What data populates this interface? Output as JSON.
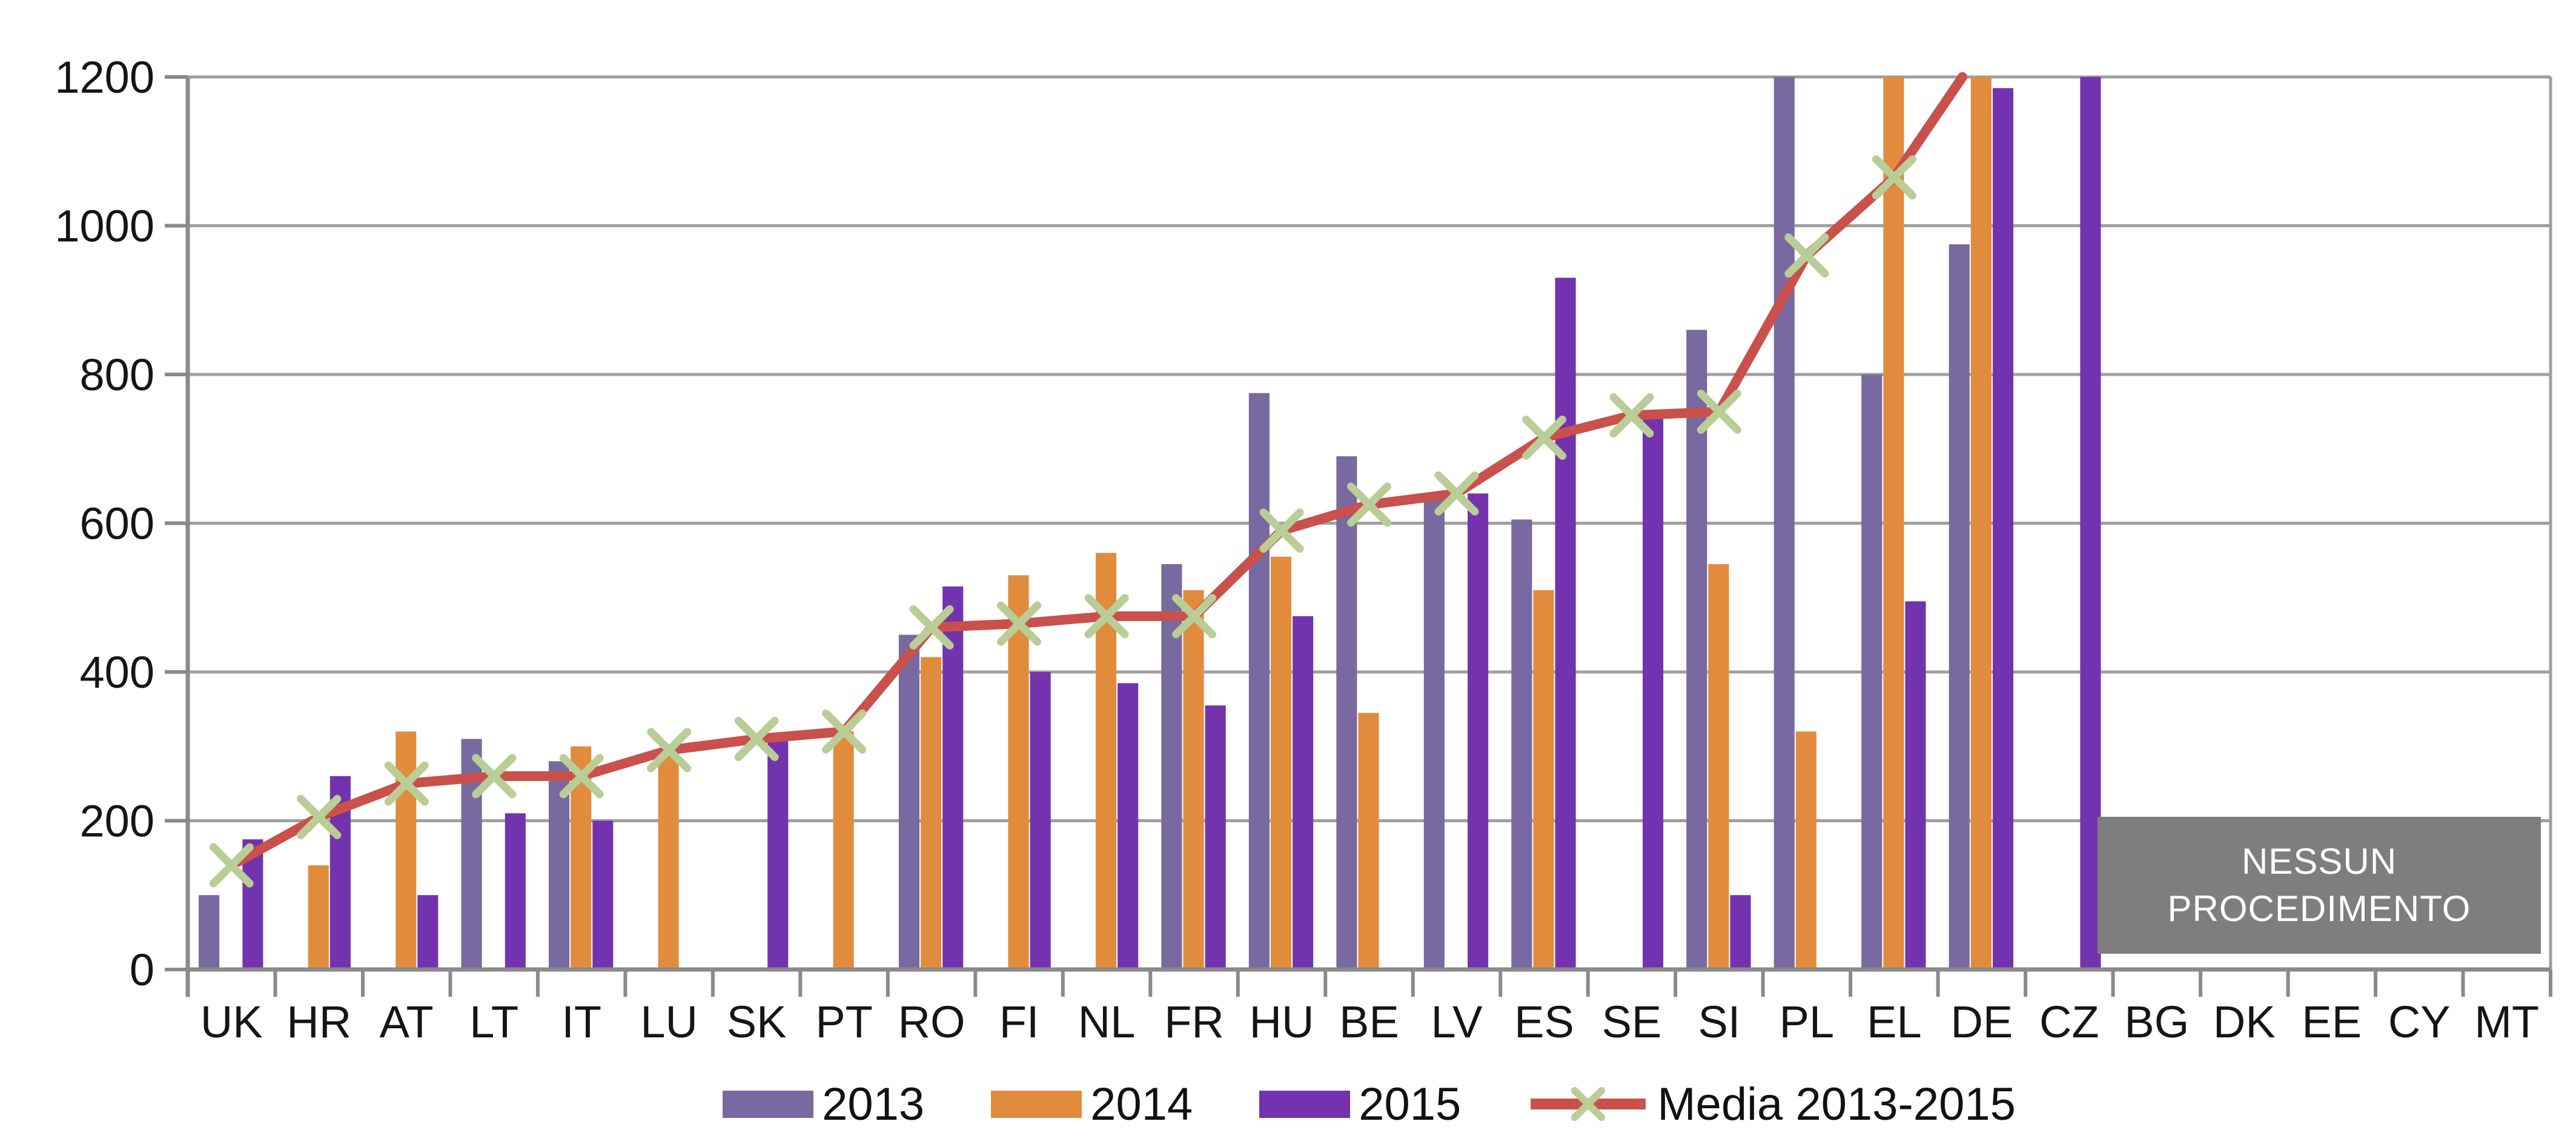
{
  "chart_data": {
    "type": "bar",
    "subtype": "grouped bars with average line overlay",
    "title": "",
    "xlabel": "",
    "ylabel": "",
    "ylim": [
      0,
      1200
    ],
    "y_ticks": [
      0,
      200,
      400,
      600,
      800,
      1000,
      1200
    ],
    "grid": "horizontal gridlines every 200",
    "legend_position": "bottom center",
    "categories": [
      "UK",
      "HR",
      "AT",
      "LT",
      "IT",
      "LU",
      "SK",
      "PT",
      "RO",
      "FI",
      "NL",
      "FR",
      "HU",
      "BE",
      "LV",
      "ES",
      "SE",
      "SI",
      "PL",
      "EL",
      "DE",
      "CZ",
      "BG",
      "DK",
      "EE",
      "CY",
      "MT"
    ],
    "series": [
      {
        "name": "2013",
        "type": "bar",
        "color": "#786AA0",
        "values": [
          100,
          null,
          null,
          310,
          280,
          null,
          null,
          null,
          450,
          null,
          null,
          545,
          775,
          690,
          640,
          605,
          null,
          860,
          1200,
          800,
          975,
          null,
          null,
          null,
          null,
          null,
          null
        ]
      },
      {
        "name": "2014",
        "type": "bar",
        "color": "#E18C3D",
        "values": [
          null,
          140,
          320,
          null,
          300,
          295,
          null,
          320,
          420,
          530,
          560,
          510,
          555,
          345,
          null,
          510,
          null,
          545,
          320,
          1200,
          1200,
          null,
          null,
          null,
          null,
          null,
          null
        ]
      },
      {
        "name": "2015",
        "type": "bar",
        "color": "#7433AE",
        "values": [
          175,
          260,
          100,
          210,
          200,
          null,
          310,
          null,
          515,
          400,
          385,
          355,
          475,
          null,
          640,
          930,
          745,
          100,
          null,
          495,
          1185,
          1200,
          null,
          null,
          null,
          null,
          null
        ]
      },
      {
        "name": "Media 2013-2015",
        "type": "line",
        "color": "#C9504B",
        "marker": "x",
        "marker_color": "#B9CD96",
        "values": [
          140,
          205,
          250,
          260,
          260,
          295,
          310,
          320,
          460,
          465,
          475,
          475,
          590,
          625,
          640,
          715,
          745,
          750,
          960,
          1065,
          null,
          null,
          null,
          null,
          null,
          null,
          null
        ],
        "exits_top_after": "EL",
        "note": "line climbs above 1200 after EL; DE and CZ averages are off-scale and not drawn"
      }
    ],
    "clipped_bars": [
      {
        "category": "PL",
        "series": "2013",
        "drawn_at": 1200
      },
      {
        "category": "EL",
        "series": "2014",
        "drawn_at": 1200
      },
      {
        "category": "DE",
        "series": "2014",
        "drawn_at": 1200
      },
      {
        "category": "CZ",
        "series": "2015",
        "drawn_at": 1200
      }
    ],
    "annotation_box": {
      "line1": "NESSUN",
      "line2": "PROCEDIMENTO",
      "fill": "#7E7E7E",
      "text_color": "#FFFFFF",
      "covers_categories": [
        "BG",
        "DK",
        "EE",
        "CY",
        "MT"
      ]
    },
    "axis_colors": {
      "gridline": "#9F9F9F",
      "axis_line": "#8A8A8A",
      "tick_text": "#151515"
    }
  }
}
